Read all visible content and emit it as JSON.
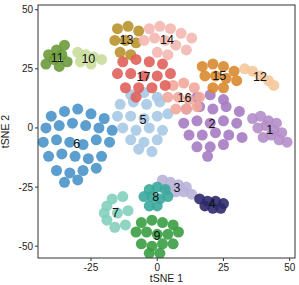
{
  "chart_data": {
    "type": "scatter",
    "x_label": "tSNE 1",
    "y_label": "tSNE 2",
    "xlim": [
      -45,
      52
    ],
    "ylim": [
      -55,
      52
    ],
    "xticks": [
      -25,
      0,
      25,
      50
    ],
    "yticks": [
      -50,
      -25,
      0,
      25,
      50
    ],
    "series": [
      {
        "name": "1",
        "color": "#b48ec9",
        "x": [
          36,
          39,
          42,
          45,
          38,
          41,
          44,
          47,
          40,
          43,
          46,
          49
        ],
        "y": [
          4,
          5,
          3,
          2,
          0,
          1,
          -1,
          -2,
          -4,
          -3,
          -5,
          -6
        ]
      },
      {
        "name": "2",
        "color": "#a57bc2",
        "x": [
          15,
          20,
          25,
          11,
          16,
          21,
          26,
          31,
          10,
          15,
          20,
          25,
          30,
          12,
          17,
          22,
          27,
          32,
          15,
          20,
          25,
          19
        ],
        "y": [
          13,
          14,
          12,
          8,
          9,
          8,
          9,
          7,
          2,
          3,
          2,
          3,
          2,
          -3,
          -3,
          -2,
          -3,
          -4,
          -8,
          -8,
          -7,
          -12
        ]
      },
      {
        "name": "3",
        "color": "#b9b4d8",
        "x": [
          2,
          5,
          8,
          11,
          4,
          7,
          10,
          13
        ],
        "y": [
          -22,
          -23,
          -24,
          -25,
          -26,
          -27,
          -27,
          -28
        ]
      },
      {
        "name": "4",
        "color": "#2d2a6b",
        "x": [
          16,
          19,
          22,
          25,
          18,
          21,
          24
        ],
        "y": [
          -30,
          -31,
          -31,
          -32,
          -33,
          -34,
          -34
        ]
      },
      {
        "name": "5",
        "color": "#a9c9e6",
        "x": [
          -10,
          -5,
          0,
          -14,
          -9,
          -4,
          1,
          -15,
          -10,
          -5,
          0,
          4,
          -13,
          -8,
          -3,
          2,
          -10,
          -5,
          0,
          -7,
          -2
        ],
        "y": [
          14,
          15,
          13,
          10,
          11,
          10,
          11,
          5,
          5,
          4,
          5,
          6,
          0,
          -1,
          0,
          -1,
          -5,
          -6,
          -5,
          -9,
          -10
        ]
      },
      {
        "name": "6",
        "color": "#4a93c8",
        "x": [
          -40,
          -35,
          -30,
          -25,
          -20,
          -42,
          -37,
          -32,
          -27,
          -22,
          -17,
          -43,
          -38,
          -33,
          -28,
          -23,
          -18,
          -41,
          -36,
          -31,
          -26,
          -21,
          -38,
          -33,
          -28,
          -23,
          -35,
          -30
        ],
        "y": [
          5,
          7,
          8,
          6,
          4,
          0,
          1,
          2,
          1,
          0,
          -1,
          -6,
          -5,
          -6,
          -7,
          -5,
          -6,
          -12,
          -11,
          -12,
          -13,
          -12,
          -18,
          -19,
          -18,
          -17,
          -23,
          -22
        ]
      },
      {
        "name": "7",
        "color": "#84cfbd",
        "x": [
          -13,
          -17,
          -19,
          -20,
          -19,
          -16,
          -12,
          -15,
          -11
        ],
        "y": [
          -29,
          -30,
          -33,
          -36,
          -39,
          -42,
          -41,
          -36,
          -35
        ]
      },
      {
        "name": "8",
        "color": "#3aa99b",
        "x": [
          -3,
          0,
          3,
          -5,
          -2,
          1,
          4,
          -3,
          0
        ],
        "y": [
          -26,
          -25,
          -26,
          -29,
          -29,
          -30,
          -29,
          -33,
          -33
        ]
      },
      {
        "name": "9",
        "color": "#3a9f44",
        "x": [
          -6,
          -2,
          2,
          6,
          -8,
          -4,
          0,
          4,
          8,
          -6,
          -2,
          2,
          6,
          -3,
          1
        ],
        "y": [
          -40,
          -39,
          -40,
          -41,
          -44,
          -44,
          -45,
          -45,
          -44,
          -49,
          -50,
          -49,
          -49,
          -53,
          -53
        ]
      },
      {
        "name": "10",
        "color": "#c9dd9c",
        "x": [
          -30,
          -27,
          -24,
          -21,
          -29,
          -25
        ],
        "y": [
          32,
          31,
          30,
          29,
          28,
          27
        ]
      },
      {
        "name": "11",
        "color": "#6c9b3b",
        "x": [
          -35,
          -38,
          -41,
          -36,
          -39,
          -42,
          -34,
          -37
        ],
        "y": [
          35,
          33,
          31,
          31,
          29,
          27,
          28,
          26
        ]
      },
      {
        "name": "12",
        "color": "#f5c99b",
        "x": [
          33,
          36,
          39,
          42,
          44
        ],
        "y": [
          25,
          24,
          22,
          20,
          18
        ]
      },
      {
        "name": "13",
        "color": "#b8922b",
        "x": [
          -15,
          -11,
          -7,
          -16,
          -12,
          -8,
          -14,
          -10
        ],
        "y": [
          42,
          43,
          41,
          37,
          37,
          36,
          32,
          31
        ]
      },
      {
        "name": "14",
        "color": "#f4b8b1",
        "x": [
          -3,
          1,
          5,
          9,
          13,
          -5,
          -1,
          3,
          7,
          11,
          0,
          4
        ],
        "y": [
          42,
          43,
          42,
          40,
          38,
          37,
          38,
          37,
          35,
          33,
          32,
          31
        ]
      },
      {
        "name": "15",
        "color": "#d98a2f",
        "x": [
          17,
          21,
          25,
          29,
          18,
          22,
          26,
          30,
          21,
          25
        ],
        "y": [
          26,
          27,
          26,
          24,
          22,
          22,
          21,
          20,
          17,
          17
        ]
      },
      {
        "name": "16",
        "color": "#f2a99b",
        "x": [
          6,
          10,
          14,
          4,
          8,
          12,
          16,
          7,
          11,
          15
        ],
        "y": [
          18,
          19,
          17,
          13,
          13,
          12,
          13,
          8,
          8,
          9
        ]
      },
      {
        "name": "17",
        "color": "#e0605a",
        "x": [
          -13,
          -8,
          -3,
          2,
          -15,
          -10,
          -5,
          0,
          5,
          -12,
          -7,
          -2,
          3,
          -8
        ],
        "y": [
          28,
          29,
          28,
          27,
          23,
          23,
          22,
          22,
          23,
          17,
          17,
          17,
          18,
          13
        ]
      }
    ]
  }
}
